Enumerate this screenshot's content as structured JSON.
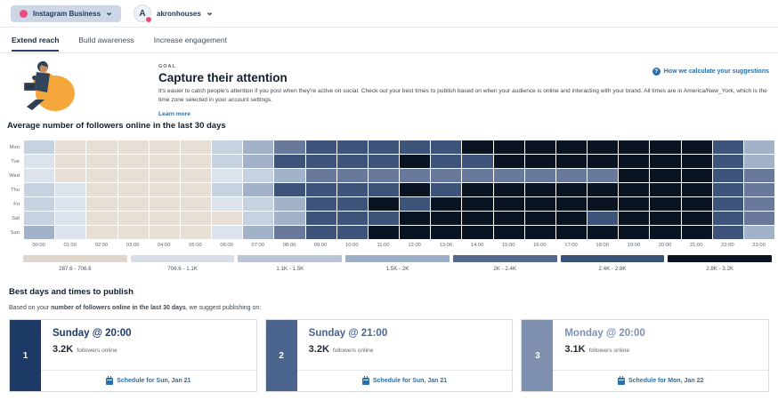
{
  "topbar": {
    "network_label": "Instagram Business",
    "account_name": "akronhouses",
    "avatar_letter": "A"
  },
  "tabs": {
    "items": [
      {
        "label": "Extend reach",
        "active": true
      },
      {
        "label": "Build awareness",
        "active": false
      },
      {
        "label": "Increase engagement",
        "active": false
      }
    ]
  },
  "goal": {
    "eyebrow": "GOAL",
    "title": "Capture their attention",
    "description": "It's easier to catch people's attention if you post when they're active on social. Check out your best times to publish based on when your audience is online and interacting with your brand. All times are in America/New_York, which is the time zone selected in your account settings.",
    "learn_more": "Learn more",
    "help_icon": "?",
    "help_link": "How we calculate your suggestions"
  },
  "heatmap": {
    "type": "heatmap",
    "title": "Average number of followers online in the last 30 days",
    "days": [
      "Mon",
      "Tue",
      "Wed",
      "Thu",
      "Fri",
      "Sat",
      "Sun"
    ],
    "hours": [
      "00:00",
      "01:00",
      "02:00",
      "03:00",
      "04:00",
      "05:00",
      "06:00",
      "07:00",
      "08:00",
      "09:00",
      "10:00",
      "11:00",
      "12:00",
      "13:00",
      "14:00",
      "15:00",
      "16:00",
      "17:00",
      "18:00",
      "19:00",
      "20:00",
      "21:00",
      "22:00",
      "23:00"
    ],
    "palette": [
      "#e7dfd5",
      "#dde3ec",
      "#c7d2e1",
      "#a2b2c9",
      "#68799b",
      "#3d5379",
      "#0a1322"
    ],
    "matrix": [
      [
        3,
        1,
        1,
        1,
        1,
        1,
        3,
        4,
        5,
        6,
        6,
        6,
        6,
        6,
        7,
        7,
        7,
        7,
        7,
        7,
        7,
        7,
        6,
        4
      ],
      [
        2,
        1,
        1,
        1,
        1,
        1,
        3,
        4,
        6,
        6,
        6,
        6,
        7,
        6,
        6,
        7,
        7,
        7,
        7,
        7,
        7,
        7,
        6,
        4
      ],
      [
        2,
        1,
        1,
        1,
        1,
        1,
        2,
        3,
        4,
        5,
        5,
        5,
        5,
        5,
        5,
        5,
        5,
        5,
        5,
        7,
        7,
        7,
        6,
        5
      ],
      [
        3,
        2,
        1,
        1,
        1,
        1,
        3,
        4,
        6,
        6,
        6,
        6,
        7,
        6,
        7,
        7,
        7,
        7,
        7,
        7,
        7,
        7,
        6,
        5
      ],
      [
        3,
        2,
        1,
        1,
        1,
        1,
        2,
        3,
        4,
        6,
        6,
        7,
        6,
        7,
        7,
        7,
        7,
        7,
        7,
        7,
        7,
        7,
        6,
        5
      ],
      [
        3,
        2,
        1,
        1,
        1,
        1,
        1,
        3,
        4,
        6,
        6,
        6,
        7,
        7,
        7,
        7,
        7,
        7,
        6,
        7,
        7,
        7,
        6,
        5
      ],
      [
        4,
        2,
        1,
        1,
        1,
        1,
        2,
        4,
        5,
        6,
        6,
        7,
        7,
        7,
        7,
        7,
        7,
        7,
        7,
        7,
        7,
        7,
        6,
        4
      ]
    ],
    "legend": [
      {
        "label": "287.6 - 706.6",
        "color": "#e0d7cc"
      },
      {
        "label": "706.6 - 1.1K",
        "color": "#d8dee8"
      },
      {
        "label": "1.1K - 1.5K",
        "color": "#bac6d7"
      },
      {
        "label": "1.5K - 2K",
        "color": "#9cadc6"
      },
      {
        "label": "2K - 2.4K",
        "color": "#52688f"
      },
      {
        "label": "2.4K - 2.8K",
        "color": "#3a5278"
      },
      {
        "label": "2.8K - 3.2K",
        "color": "#0c1424"
      }
    ]
  },
  "best": {
    "heading": "Best days and times to publish",
    "intro_prefix": "Based on your ",
    "intro_bold": "number of followers online in the last 30 days",
    "intro_suffix": ", we suggest publishing on:",
    "cards": [
      {
        "rank": "1",
        "color": "#1d3a66",
        "title": "Sunday @ 20:00",
        "value": "3.2K",
        "suffix": "followers online",
        "schedule_label": "Schedule for Sun, Jan 21"
      },
      {
        "rank": "2",
        "color": "#4a648d",
        "title": "Sunday @ 21:00",
        "value": "3.2K",
        "suffix": "followers online",
        "schedule_label": "Schedule for Sun, Jan 21"
      },
      {
        "rank": "3",
        "color": "#7e90ae",
        "title": "Monday @ 20:00",
        "value": "3.1K",
        "suffix": "followers online",
        "schedule_label": "Schedule for Mon, Jan 22"
      }
    ]
  }
}
